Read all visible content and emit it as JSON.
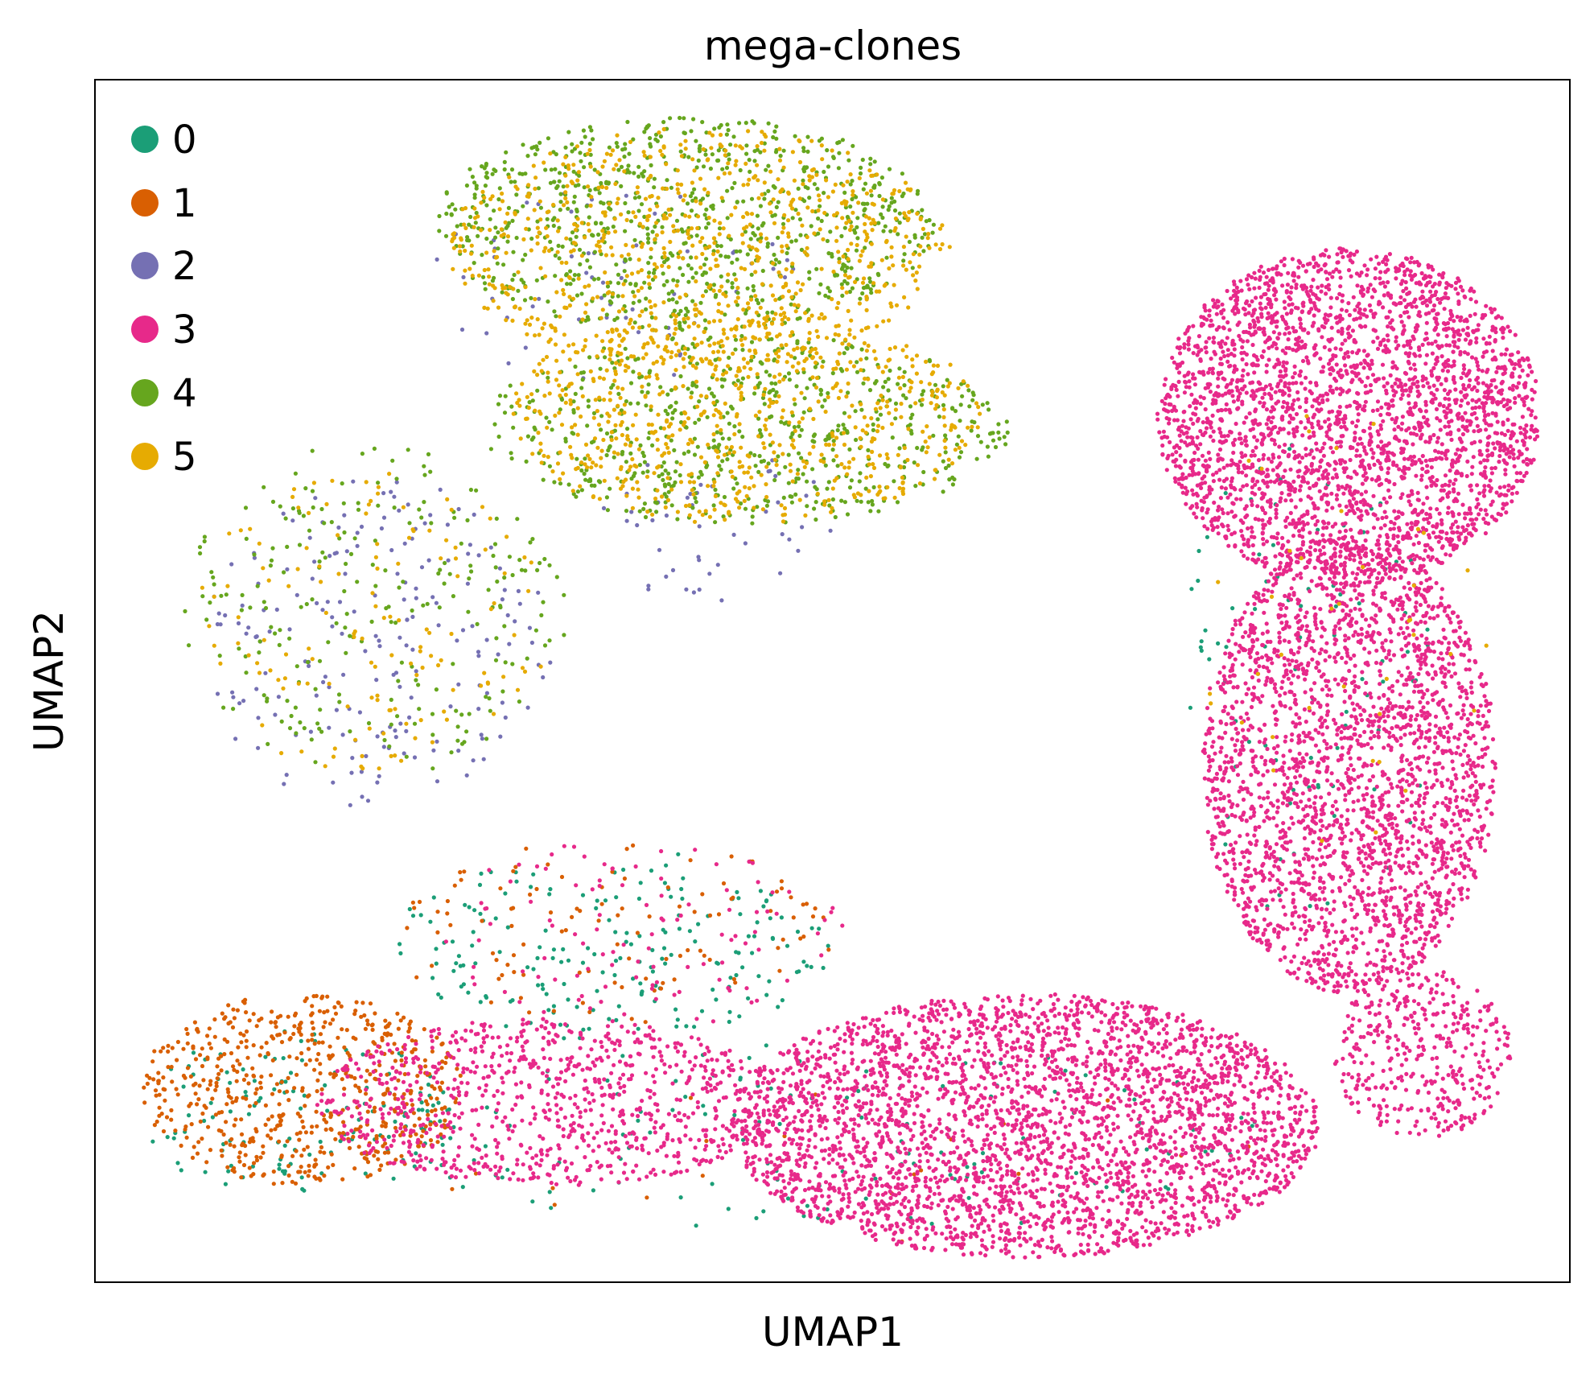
{
  "chart_data": {
    "type": "scatter",
    "title": "mega-clones",
    "xlabel": "UMAP1",
    "ylabel": "UMAP2",
    "xticks": [],
    "yticks": [],
    "grid": false,
    "legend_position": "top-left",
    "xlim": [
      0,
      100
    ],
    "ylim": [
      0,
      100
    ],
    "series": [
      {
        "name": "0",
        "color": "#1b9e77",
        "regions": [
          {
            "shape": "ellipse",
            "cx": 14,
            "cy": 14,
            "rx": 11,
            "ry": 7,
            "count": 130
          },
          {
            "shape": "ellipse",
            "cx": 35,
            "cy": 28,
            "rx": 15,
            "ry": 8,
            "count": 190
          },
          {
            "shape": "ellipse",
            "cx": 50,
            "cy": 12,
            "rx": 30,
            "ry": 8,
            "count": 130
          },
          {
            "shape": "ellipse",
            "cx": 82,
            "cy": 50,
            "rx": 9,
            "ry": 20,
            "count": 90
          }
        ]
      },
      {
        "name": "1",
        "color": "#d95f02",
        "regions": [
          {
            "shape": "ellipse",
            "cx": 14,
            "cy": 16,
            "rx": 11,
            "ry": 8,
            "count": 620
          },
          {
            "shape": "ellipse",
            "cx": 35,
            "cy": 29,
            "rx": 15,
            "ry": 8,
            "count": 110
          },
          {
            "shape": "ellipse",
            "cx": 50,
            "cy": 10,
            "rx": 30,
            "ry": 7,
            "count": 20
          }
        ]
      },
      {
        "name": "2",
        "color": "#7570b3",
        "regions": [
          {
            "shape": "ellipse",
            "cx": 19,
            "cy": 53,
            "rx": 12,
            "ry": 14,
            "count": 190
          },
          {
            "shape": "ellipse",
            "cx": 35,
            "cy": 83,
            "rx": 13,
            "ry": 8,
            "count": 60
          },
          {
            "shape": "ellipse",
            "cx": 42,
            "cy": 63,
            "rx": 8,
            "ry": 7,
            "count": 45
          }
        ]
      },
      {
        "name": "3",
        "color": "#e7298a",
        "regions": [
          {
            "shape": "ellipse",
            "cx": 85,
            "cy": 72,
            "rx": 13,
            "ry": 14,
            "count": 3000
          },
          {
            "shape": "ellipse",
            "cx": 85,
            "cy": 43,
            "rx": 10,
            "ry": 19,
            "count": 2600
          },
          {
            "shape": "ellipse",
            "cx": 63,
            "cy": 13,
            "rx": 20,
            "ry": 11,
            "count": 3300
          },
          {
            "shape": "ellipse",
            "cx": 31,
            "cy": 15,
            "rx": 16,
            "ry": 7,
            "count": 900
          },
          {
            "shape": "ellipse",
            "cx": 37,
            "cy": 29,
            "rx": 14,
            "ry": 8,
            "count": 110
          },
          {
            "shape": "ellipse",
            "cx": 90,
            "cy": 19,
            "rx": 6,
            "ry": 7,
            "count": 380
          }
        ]
      },
      {
        "name": "4",
        "color": "#66a61e",
        "regions": [
          {
            "shape": "ellipse",
            "cx": 40,
            "cy": 88,
            "rx": 17,
            "ry": 9,
            "count": 850
          },
          {
            "shape": "ellipse",
            "cx": 44,
            "cy": 71,
            "rx": 18,
            "ry": 8,
            "count": 650
          },
          {
            "shape": "ellipse",
            "cx": 19,
            "cy": 56,
            "rx": 13,
            "ry": 14,
            "count": 230
          }
        ]
      },
      {
        "name": "5",
        "color": "#e6ab02",
        "regions": [
          {
            "shape": "ellipse",
            "cx": 41,
            "cy": 86,
            "rx": 17,
            "ry": 10,
            "count": 800
          },
          {
            "shape": "ellipse",
            "cx": 44,
            "cy": 72,
            "rx": 16,
            "ry": 9,
            "count": 700
          },
          {
            "shape": "ellipse",
            "cx": 19,
            "cy": 55,
            "rx": 12,
            "ry": 13,
            "count": 140
          },
          {
            "shape": "ellipse",
            "cx": 85,
            "cy": 55,
            "rx": 10,
            "ry": 20,
            "count": 40
          }
        ]
      }
    ]
  }
}
